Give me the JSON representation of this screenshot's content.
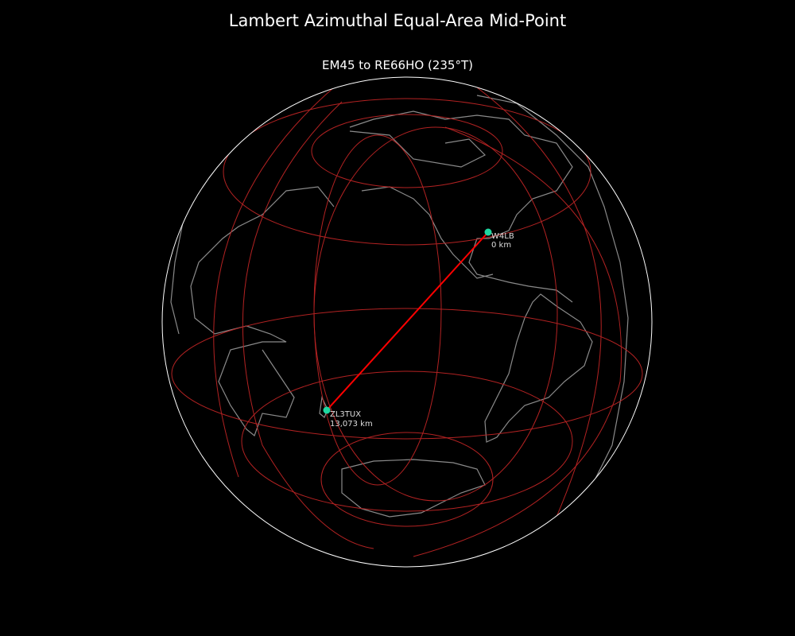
{
  "title": "Lambert Azimuthal Equal-Area Mid-Point",
  "subtitle": "EM45 to RE66HO (235°T)",
  "colors": {
    "background": "#000000",
    "coastline": "#8a8a8a",
    "graticule": "#b22222",
    "path": "#ff0000",
    "station": "#1fd6a0",
    "globe_edge": "#ffffff"
  },
  "stations": [
    {
      "call": "W4LB",
      "distance": "0 km"
    },
    {
      "call": "ZL3TUX",
      "distance": "13,073 km"
    }
  ]
}
